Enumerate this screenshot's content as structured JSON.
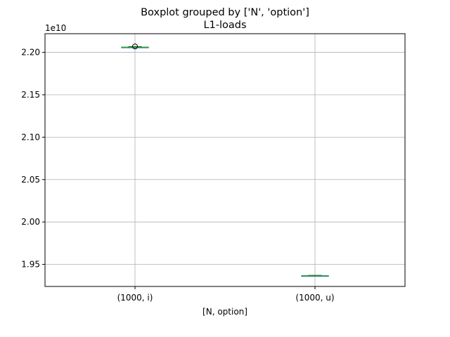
{
  "chart_data": {
    "type": "boxplot",
    "title": "Boxplot grouped by ['N', 'option']",
    "subtitle": "L1-loads",
    "xlabel": "[N, option]",
    "ylabel": "",
    "y_offset_label": "1e10",
    "ylim": [
      19.24,
      22.22
    ],
    "y_ticks": [
      19.5,
      20.0,
      20.5,
      21.0,
      21.5,
      22.0
    ],
    "y_tick_labels": [
      "1.95",
      "2.00",
      "2.05",
      "2.10",
      "2.15",
      "2.20"
    ],
    "categories": [
      "(1000, i)",
      "(1000, u)"
    ],
    "boxes": [
      {
        "category": "(1000, i)",
        "whisker_low": 22.055,
        "q1": 22.058,
        "median": 22.06,
        "q3": 22.062,
        "whisker_high": 22.067,
        "outliers": [
          22.07
        ]
      },
      {
        "category": "(1000, u)",
        "whisker_low": 19.36,
        "q1": 19.362,
        "median": 19.365,
        "q3": 19.367,
        "whisker_high": 19.37,
        "outliers": []
      }
    ],
    "grid": true
  },
  "colors": {
    "box": "#1f77b4",
    "median": "#2ca02c",
    "whisker": "#000000",
    "grid": "#b0b0b0",
    "axes": "#000000"
  }
}
